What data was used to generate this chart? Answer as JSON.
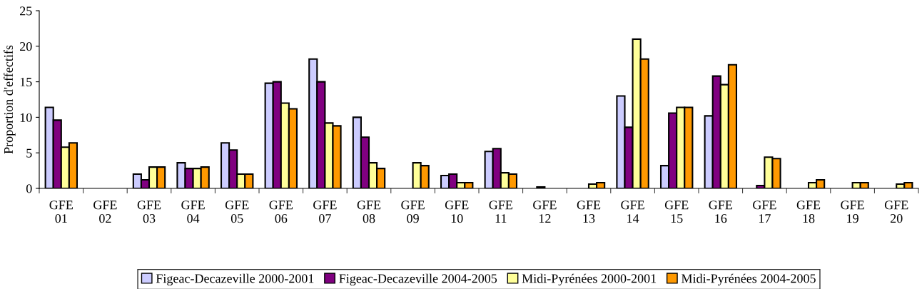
{
  "chart_data": {
    "type": "bar",
    "ylabel": "Proportion d'effectifs",
    "categories": [
      "GFE\n01",
      "GFE\n02",
      "GFE\n03",
      "GFE\n04",
      "GFE\n05",
      "GFE\n06",
      "GFE\n07",
      "GFE\n08",
      "GFE\n09",
      "GFE\n10",
      "GFE\n11",
      "GFE\n12",
      "GFE\n13",
      "GFE\n14",
      "GFE\n15",
      "GFE\n16",
      "GFE\n17",
      "GFE\n18",
      "GFE\n19",
      "GFE\n20"
    ],
    "series": [
      {
        "name": "Figeac-Decazeville 2000-2001",
        "color": "#ccccff",
        "values": [
          11.4,
          0,
          2,
          3.6,
          6.4,
          14.8,
          18.2,
          10,
          0,
          1.8,
          5.2,
          0,
          0,
          13,
          3.2,
          10.2,
          0,
          0,
          0,
          0
        ]
      },
      {
        "name": "Figeac-Decazeville 2004-2005",
        "color": "#800080",
        "values": [
          9.6,
          0,
          1.2,
          2.8,
          5.4,
          15,
          15,
          7.2,
          0,
          2,
          5.6,
          0.2,
          0,
          8.6,
          10.6,
          15.8,
          0.4,
          0,
          0,
          0
        ]
      },
      {
        "name": "Midi-Pyrénées 2000-2001",
        "color": "#ffff99",
        "values": [
          5.8,
          0,
          3,
          2.8,
          2,
          12,
          9.2,
          3.6,
          3.6,
          0.8,
          2.2,
          0,
          0.6,
          21,
          11.4,
          14.6,
          4.4,
          0.8,
          0.8,
          0.6
        ]
      },
      {
        "name": "Midi-Pyrénées 2004-2005",
        "color": "#ff9900",
        "values": [
          6.4,
          0,
          3,
          3,
          2,
          11.2,
          8.8,
          2.8,
          3.2,
          0.8,
          2,
          0,
          0.8,
          18.2,
          11.4,
          17.4,
          4.2,
          1.2,
          0.8,
          0.8
        ]
      }
    ],
    "ylim": [
      0,
      25
    ],
    "yticks": [
      0,
      5,
      10,
      15,
      20,
      25
    ],
    "grid": false,
    "legend": "bottom"
  }
}
